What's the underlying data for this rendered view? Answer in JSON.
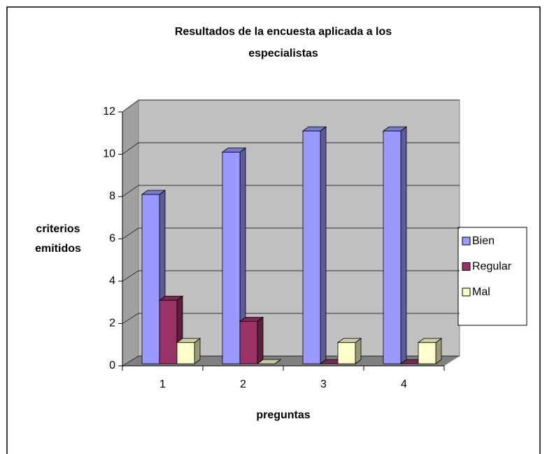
{
  "chart_data": {
    "type": "bar3d",
    "title": [
      "Resultados de la encuesta aplicada a los",
      "especialistas"
    ],
    "ylabel": [
      "criterios",
      "emitidos"
    ],
    "xlabel": "preguntas",
    "categories": [
      "1",
      "2",
      "3",
      "4"
    ],
    "series": [
      {
        "name": "Bien",
        "color": "#9999ff",
        "values": [
          8,
          10,
          11,
          11
        ]
      },
      {
        "name": "Regular",
        "color": "#993366",
        "values": [
          3,
          2,
          0,
          0
        ]
      },
      {
        "name": "Mal",
        "color": "#ffffcc",
        "values": [
          1,
          0,
          1,
          1
        ]
      }
    ],
    "ylim": [
      0,
      12
    ],
    "yticks": [
      0,
      2,
      4,
      6,
      8,
      10,
      12
    ],
    "grid": true,
    "legend": "right"
  }
}
